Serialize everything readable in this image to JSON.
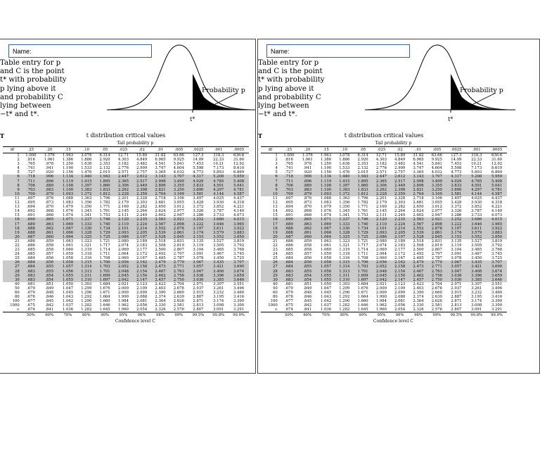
{
  "panel": {
    "name_label": "Name:",
    "intro_lines": [
      "Table entry for p",
      "and C is the point",
      "t* with probability",
      "p lying above it",
      "and probability C",
      "lying between",
      "−t* and t*."
    ],
    "probability_label": "Probability p",
    "tstar_label": "t*",
    "table_label": "T",
    "table_title": "t distribution critical values",
    "tail_header": "Tail probability p",
    "confidence_caption": "Confidence level C",
    "column_headers": [
      "df",
      ".25",
      ".20",
      ".15",
      ".10",
      ".05",
      ".025",
      ".02",
      ".01",
      ".005",
      ".0025",
      ".001",
      ".0005"
    ],
    "confidence_levels": [
      "50%",
      "60%",
      "70%",
      "80%",
      "90%",
      "95%",
      "96%",
      "98%",
      "99%",
      "99.5%",
      "99.8%",
      "99.9%"
    ],
    "rows": [
      [
        "1",
        "1.000",
        "1.376",
        "1.963",
        "3.078",
        "6.314",
        "12.71",
        "15.89",
        "31.82",
        "63.66",
        "127.3",
        "318.3",
        "636.6"
      ],
      [
        "2",
        ".816",
        "1.061",
        "1.386",
        "1.886",
        "2.920",
        "4.303",
        "4.849",
        "6.965",
        "9.925",
        "14.09",
        "22.33",
        "31.60"
      ],
      [
        "3",
        ".765",
        ".978",
        "1.250",
        "1.638",
        "2.353",
        "3.182",
        "3.482",
        "4.541",
        "5.841",
        "7.453",
        "10.21",
        "12.92"
      ],
      [
        "4",
        ".741",
        ".941",
        "1.190",
        "1.533",
        "2.132",
        "2.776",
        "2.999",
        "3.747",
        "4.604",
        "5.598",
        "7.173",
        "8.610"
      ],
      [
        "5",
        ".727",
        ".920",
        "1.156",
        "1.476",
        "2.015",
        "2.571",
        "2.757",
        "3.365",
        "4.032",
        "4.773",
        "5.893",
        "6.869"
      ],
      [
        "6",
        ".718",
        ".906",
        "1.134",
        "1.440",
        "1.943",
        "2.447",
        "2.612",
        "3.143",
        "3.707",
        "4.317",
        "5.208",
        "5.959"
      ],
      [
        "7",
        ".711",
        ".896",
        "1.119",
        "1.415",
        "1.895",
        "2.365",
        "2.517",
        "2.998",
        "3.499",
        "4.029",
        "4.785",
        "5.408"
      ],
      [
        "8",
        ".706",
        ".889",
        "1.108",
        "1.397",
        "1.860",
        "2.306",
        "2.449",
        "2.896",
        "3.355",
        "3.833",
        "4.501",
        "5.041"
      ],
      [
        "9",
        ".703",
        ".883",
        "1.100",
        "1.383",
        "1.833",
        "2.262",
        "2.398",
        "2.821",
        "3.250",
        "3.690",
        "4.297",
        "4.781"
      ],
      [
        "10",
        ".700",
        ".879",
        "1.093",
        "1.372",
        "1.812",
        "2.228",
        "2.359",
        "2.764",
        "3.169",
        "3.581",
        "4.144",
        "4.587"
      ],
      [
        "11",
        ".697",
        ".876",
        "1.088",
        "1.363",
        "1.796",
        "2.201",
        "2.328",
        "2.718",
        "3.106",
        "3.497",
        "4.025",
        "4.437"
      ],
      [
        "12",
        ".695",
        ".873",
        "1.083",
        "1.356",
        "1.782",
        "2.179",
        "2.303",
        "2.681",
        "3.055",
        "3.428",
        "3.930",
        "4.318"
      ],
      [
        "13",
        ".694",
        ".870",
        "1.079",
        "1.350",
        "1.771",
        "2.160",
        "2.282",
        "2.650",
        "3.012",
        "3.372",
        "3.852",
        "4.221"
      ],
      [
        "14",
        ".692",
        ".868",
        "1.076",
        "1.345",
        "1.761",
        "2.145",
        "2.264",
        "2.624",
        "2.977",
        "3.326",
        "3.787",
        "4.140"
      ],
      [
        "15",
        ".691",
        ".866",
        "1.074",
        "1.341",
        "1.753",
        "2.131",
        "2.249",
        "2.602",
        "2.947",
        "3.286",
        "3.733",
        "4.073"
      ],
      [
        "16",
        ".690",
        ".865",
        "1.071",
        "1.337",
        "1.746",
        "2.120",
        "2.235",
        "2.583",
        "2.921",
        "3.252",
        "3.686",
        "4.015"
      ],
      [
        "17",
        ".689",
        ".863",
        "1.069",
        "1.333",
        "1.740",
        "2.110",
        "2.224",
        "2.567",
        "2.898",
        "3.222",
        "3.646",
        "3.965"
      ],
      [
        "18",
        ".688",
        ".862",
        "1.067",
        "1.330",
        "1.734",
        "2.101",
        "2.214",
        "2.552",
        "2.878",
        "3.197",
        "3.611",
        "3.922"
      ],
      [
        "19",
        ".688",
        ".861",
        "1.066",
        "1.328",
        "1.729",
        "2.093",
        "2.205",
        "2.539",
        "2.861",
        "3.174",
        "3.579",
        "3.883"
      ],
      [
        "20",
        ".687",
        ".860",
        "1.064",
        "1.325",
        "1.725",
        "2.086",
        "2.197",
        "2.528",
        "2.845",
        "3.153",
        "3.552",
        "3.850"
      ],
      [
        "21",
        ".686",
        ".859",
        "1.063",
        "1.323",
        "1.721",
        "2.080",
        "2.189",
        "2.518",
        "2.831",
        "3.135",
        "3.527",
        "3.819"
      ],
      [
        "22",
        ".686",
        ".858",
        "1.061",
        "1.321",
        "1.717",
        "2.074",
        "2.183",
        "2.508",
        "2.819",
        "3.119",
        "3.505",
        "3.792"
      ],
      [
        "23",
        ".685",
        ".858",
        "1.060",
        "1.319",
        "1.714",
        "2.069",
        "2.177",
        "2.500",
        "2.807",
        "3.104",
        "3.485",
        "3.768"
      ],
      [
        "24",
        ".685",
        ".857",
        "1.059",
        "1.318",
        "1.711",
        "2.064",
        "2.172",
        "2.492",
        "2.797",
        "3.091",
        "3.467",
        "3.745"
      ],
      [
        "25",
        ".684",
        ".856",
        "1.058",
        "1.316",
        "1.708",
        "2.060",
        "2.167",
        "2.485",
        "2.787",
        "3.078",
        "3.450",
        "3.725"
      ],
      [
        "26",
        ".684",
        ".856",
        "1.058",
        "1.315",
        "1.706",
        "2.056",
        "2.162",
        "2.479",
        "2.779",
        "3.067",
        "3.435",
        "3.707"
      ],
      [
        "27",
        ".684",
        ".855",
        "1.057",
        "1.314",
        "1.703",
        "2.052",
        "2.158",
        "2.473",
        "2.771",
        "3.057",
        "3.421",
        "3.690"
      ],
      [
        "28",
        ".683",
        ".855",
        "1.056",
        "1.313",
        "1.701",
        "2.048",
        "2.154",
        "2.467",
        "2.763",
        "3.047",
        "3.408",
        "3.674"
      ],
      [
        "29",
        ".683",
        ".854",
        "1.055",
        "1.311",
        "1.699",
        "2.045",
        "2.150",
        "2.462",
        "2.756",
        "3.038",
        "3.396",
        "3.659"
      ],
      [
        "30",
        ".683",
        ".854",
        "1.055",
        "1.310",
        "1.697",
        "2.042",
        "2.147",
        "2.457",
        "2.750",
        "3.030",
        "3.385",
        "3.646"
      ],
      [
        "40",
        ".681",
        ".851",
        "1.050",
        "1.303",
        "1.684",
        "2.021",
        "2.123",
        "2.423",
        "2.704",
        "2.971",
        "3.307",
        "3.551"
      ],
      [
        "50",
        ".679",
        ".849",
        "1.047",
        "1.299",
        "1.676",
        "2.009",
        "2.109",
        "2.403",
        "2.678",
        "2.937",
        "3.261",
        "3.496"
      ],
      [
        "60",
        ".679",
        ".848",
        "1.045",
        "1.296",
        "1.671",
        "2.000",
        "2.099",
        "2.390",
        "2.660",
        "2.915",
        "3.232",
        "3.460"
      ],
      [
        "80",
        ".678",
        ".846",
        "1.043",
        "1.292",
        "1.664",
        "1.990",
        "2.088",
        "2.374",
        "2.639",
        "2.887",
        "3.195",
        "3.416"
      ],
      [
        "100",
        ".677",
        ".845",
        "1.042",
        "1.290",
        "1.660",
        "1.984",
        "2.081",
        "2.364",
        "2.626",
        "2.871",
        "3.174",
        "3.390"
      ],
      [
        "1000",
        ".675",
        ".842",
        "1.037",
        "1.282",
        "1.646",
        "1.962",
        "2.056",
        "2.330",
        "2.581",
        "2.813",
        "3.098",
        "3.300"
      ],
      [
        "∞",
        ".674",
        ".841",
        "1.036",
        "1.282",
        "1.645",
        "1.960",
        "2.054",
        "2.326",
        "2.576",
        "2.807",
        "3.091",
        "3.291"
      ]
    ],
    "shaded_rows": [
      5,
      6,
      7,
      8,
      9,
      15,
      16,
      17,
      18,
      19,
      25,
      26,
      27,
      28,
      29
    ]
  }
}
